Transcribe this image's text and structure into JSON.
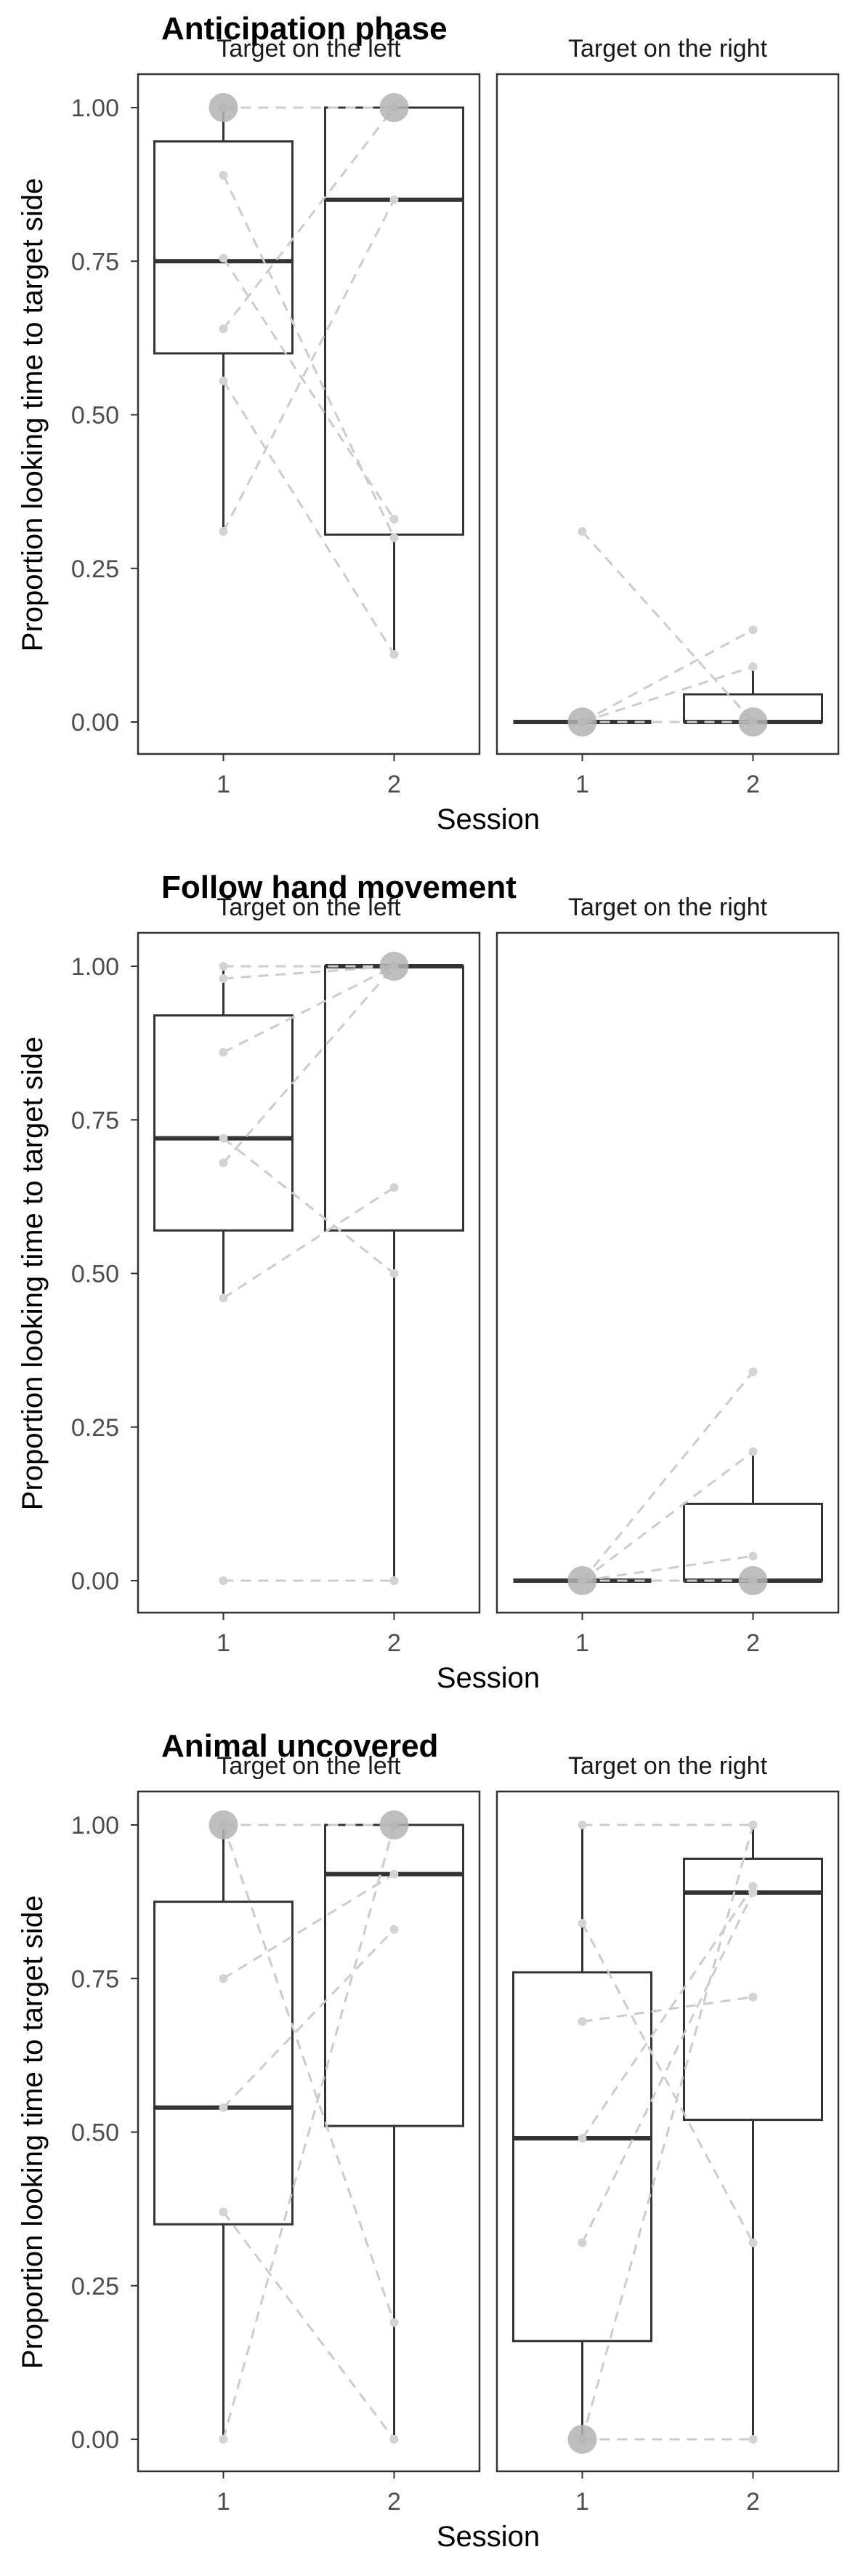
{
  "chart_data": [
    {
      "type": "box",
      "title": "Anticipation phase",
      "xlabel": "Session",
      "ylabel": "Proportion looking time to target side",
      "ylim": [
        0,
        1
      ],
      "yticks": [
        "0.00",
        "0.25",
        "0.50",
        "0.75",
        "1.00"
      ],
      "categories": [
        "1",
        "2"
      ],
      "facets": [
        {
          "label": "Target on the left",
          "boxes": [
            {
              "x": "1",
              "lower": 0.31,
              "q1": 0.6,
              "median": 0.75,
              "q3": 0.945,
              "upper": 1.0
            },
            {
              "x": "2",
              "lower": 0.11,
              "q1": 0.305,
              "median": 0.85,
              "q3": 1.0,
              "upper": 1.0
            }
          ],
          "lines": [
            [
              1.0,
              1.0
            ],
            [
              0.89,
              0.3
            ],
            [
              0.755,
              0.33
            ],
            [
              0.64,
              1.0
            ],
            [
              0.555,
              0.11
            ],
            [
              0.31,
              0.85
            ]
          ],
          "big_points": [
            {
              "x": "1",
              "y": 1.0
            },
            {
              "x": "2",
              "y": 1.0
            }
          ]
        },
        {
          "label": "Target on the right",
          "boxes": [
            {
              "x": "1",
              "lower": 0.0,
              "q1": 0.0,
              "median": 0.0,
              "q3": 0.0,
              "upper": 0.0
            },
            {
              "x": "2",
              "lower": 0.0,
              "q1": 0.0,
              "median": 0.0,
              "q3": 0.045,
              "upper": 0.09
            }
          ],
          "lines": [
            [
              0.31,
              0.0
            ],
            [
              0.0,
              0.15
            ],
            [
              0.0,
              0.09
            ],
            [
              0.0,
              0.0
            ]
          ],
          "big_points": [
            {
              "x": "1",
              "y": 0.0
            },
            {
              "x": "2",
              "y": 0.0
            }
          ]
        }
      ]
    },
    {
      "type": "box",
      "title": "Follow hand movement",
      "xlabel": "Session",
      "ylabel": "Proportion looking time to target side",
      "ylim": [
        0,
        1
      ],
      "yticks": [
        "0.00",
        "0.25",
        "0.50",
        "0.75",
        "1.00"
      ],
      "categories": [
        "1",
        "2"
      ],
      "facets": [
        {
          "label": "Target on the left",
          "boxes": [
            {
              "x": "1",
              "lower": 0.46,
              "q1": 0.57,
              "median": 0.72,
              "q3": 0.92,
              "upper": 1.0
            },
            {
              "x": "2",
              "lower": 0.0,
              "q1": 0.57,
              "median": 1.0,
              "q3": 1.0,
              "upper": 1.0
            }
          ],
          "lines": [
            [
              1.0,
              1.0
            ],
            [
              0.98,
              1.0
            ],
            [
              0.86,
              1.0
            ],
            [
              0.72,
              0.5
            ],
            [
              0.68,
              1.0
            ],
            [
              0.46,
              0.64
            ],
            [
              0.0,
              0.0
            ]
          ],
          "big_points": [
            {
              "x": "2",
              "y": 1.0
            }
          ]
        },
        {
          "label": "Target on the right",
          "boxes": [
            {
              "x": "1",
              "lower": 0.0,
              "q1": 0.0,
              "median": 0.0,
              "q3": 0.0,
              "upper": 0.0
            },
            {
              "x": "2",
              "lower": 0.0,
              "q1": 0.0,
              "median": 0.0,
              "q3": 0.125,
              "upper": 0.21
            }
          ],
          "lines": [
            [
              0.0,
              0.34
            ],
            [
              0.0,
              0.21
            ],
            [
              0.0,
              0.04
            ],
            [
              0.0,
              0.0
            ]
          ],
          "big_points": [
            {
              "x": "1",
              "y": 0.0
            },
            {
              "x": "2",
              "y": 0.0
            }
          ]
        }
      ]
    },
    {
      "type": "box",
      "title": "Animal uncovered",
      "xlabel": "Session",
      "ylabel": "Proportion looking time to target side",
      "ylim": [
        0,
        1
      ],
      "yticks": [
        "0.00",
        "0.25",
        "0.50",
        "0.75",
        "1.00"
      ],
      "categories": [
        "1",
        "2"
      ],
      "facets": [
        {
          "label": "Target on the left",
          "boxes": [
            {
              "x": "1",
              "lower": 0.0,
              "q1": 0.35,
              "median": 0.54,
              "q3": 0.875,
              "upper": 1.0
            },
            {
              "x": "2",
              "lower": 0.0,
              "q1": 0.51,
              "median": 0.92,
              "q3": 1.0,
              "upper": 1.0
            }
          ],
          "lines": [
            [
              1.0,
              1.0
            ],
            [
              1.0,
              0.19
            ],
            [
              0.75,
              0.92
            ],
            [
              0.54,
              0.83
            ],
            [
              0.37,
              0.0
            ],
            [
              0.0,
              1.0
            ]
          ],
          "big_points": [
            {
              "x": "1",
              "y": 1.0
            },
            {
              "x": "2",
              "y": 1.0
            }
          ]
        },
        {
          "label": "Target on the right",
          "boxes": [
            {
              "x": "1",
              "lower": 0.0,
              "q1": 0.16,
              "median": 0.49,
              "q3": 0.76,
              "upper": 1.0
            },
            {
              "x": "2",
              "lower": 0.0,
              "q1": 0.52,
              "median": 0.89,
              "q3": 0.945,
              "upper": 1.0
            }
          ],
          "lines": [
            [
              1.0,
              1.0
            ],
            [
              0.84,
              0.32
            ],
            [
              0.68,
              0.72
            ],
            [
              0.49,
              0.9
            ],
            [
              0.32,
              0.89
            ],
            [
              0.0,
              1.0
            ],
            [
              0.0,
              0.0
            ]
          ],
          "big_points": [
            {
              "x": "1",
              "y": 0.0
            }
          ]
        }
      ]
    }
  ]
}
